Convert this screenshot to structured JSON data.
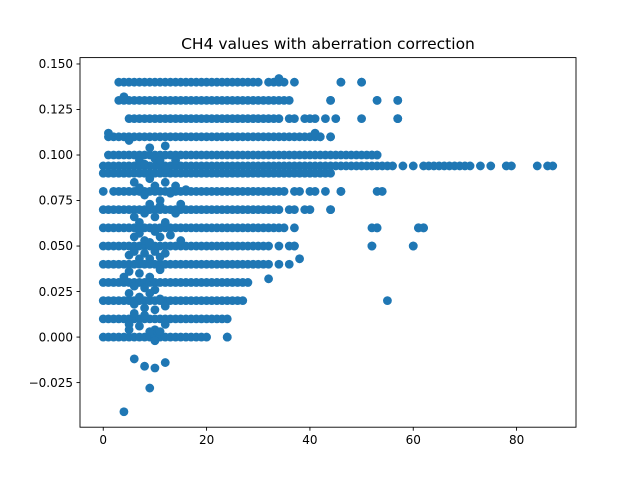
{
  "chart_data": {
    "type": "scatter",
    "title": "CH4 values with aberration correction",
    "xlabel": "",
    "ylabel": "",
    "xlim": [
      -4.5,
      91.5
    ],
    "ylim": [
      -0.0495,
      0.1535
    ],
    "x_ticks": [
      0,
      20,
      40,
      60,
      80
    ],
    "x_tick_labels": [
      "0",
      "20",
      "40",
      "60",
      "80"
    ],
    "y_ticks": [
      -0.025,
      0.0,
      0.025,
      0.05,
      0.075,
      0.1,
      0.125,
      0.15
    ],
    "y_tick_labels": [
      "−0.025",
      "0.000",
      "0.025",
      "0.050",
      "0.075",
      "0.100",
      "0.125",
      "0.150"
    ],
    "grid": false,
    "legend": "none",
    "marker_color": "#1f77b4",
    "series": [
      {
        "bands": [
          {
            "y": 0.14,
            "x": [
              3,
              4,
              5,
              6,
              7,
              8,
              9,
              10,
              11,
              12,
              13,
              14,
              15,
              16,
              17,
              18,
              19,
              20,
              21,
              22,
              23,
              24,
              25,
              26,
              27,
              28,
              29,
              30,
              32,
              33,
              34,
              35,
              37,
              46,
              50
            ]
          },
          {
            "y": 0.13,
            "x": [
              3,
              4,
              5,
              6,
              7,
              8,
              9,
              10,
              11,
              12,
              13,
              14,
              15,
              16,
              17,
              18,
              19,
              20,
              21,
              22,
              23,
              24,
              25,
              26,
              27,
              28,
              29,
              30,
              31,
              32,
              33,
              34,
              35,
              36,
              44,
              53,
              57
            ]
          },
          {
            "y": 0.12,
            "x": [
              5,
              6,
              7,
              8,
              9,
              10,
              11,
              12,
              13,
              14,
              15,
              16,
              17,
              18,
              19,
              20,
              21,
              22,
              23,
              24,
              25,
              26,
              27,
              28,
              29,
              30,
              31,
              32,
              33,
              34,
              36,
              37,
              39,
              40,
              41,
              43,
              45,
              50,
              57
            ]
          },
          {
            "y": 0.11,
            "x": [
              1,
              2,
              3,
              4,
              5,
              6,
              7,
              8,
              9,
              10,
              11,
              12,
              13,
              14,
              15,
              16,
              17,
              18,
              19,
              20,
              21,
              22,
              23,
              24,
              25,
              26,
              27,
              28,
              29,
              30,
              31,
              32,
              33,
              34,
              35,
              36,
              37,
              38,
              39,
              40,
              41,
              42,
              44
            ]
          },
          {
            "y": 0.1,
            "x": [
              1,
              2,
              3,
              4,
              5,
              6,
              7,
              8,
              9,
              10,
              11,
              12,
              13,
              14,
              15,
              16,
              17,
              18,
              19,
              20,
              21,
              22,
              23,
              24,
              25,
              26,
              27,
              28,
              29,
              30,
              31,
              32,
              33,
              34,
              35,
              36,
              37,
              38,
              39,
              40,
              41,
              42,
              43,
              44,
              45,
              46,
              47,
              48,
              49,
              50,
              51,
              52,
              53
            ]
          },
          {
            "y": 0.094,
            "x": [
              0,
              1,
              2,
              3,
              4,
              5,
              6,
              7,
              8,
              9,
              10,
              11,
              12,
              13,
              14,
              15,
              16,
              17,
              18,
              19,
              20,
              21,
              22,
              23,
              24,
              25,
              26,
              27,
              28,
              29,
              30,
              31,
              32,
              33,
              34,
              35,
              36,
              37,
              38,
              39,
              40,
              41,
              42,
              43,
              44,
              45,
              46,
              47,
              48,
              49,
              50,
              51,
              52,
              53,
              54,
              55,
              56,
              58,
              60,
              62,
              63,
              64,
              65,
              66,
              67,
              68,
              69,
              70,
              71,
              73,
              75,
              78,
              79,
              84,
              86,
              87
            ]
          },
          {
            "y": 0.09,
            "x": [
              0,
              1,
              2,
              3,
              4,
              5,
              6,
              7,
              8,
              9,
              10,
              11,
              12,
              13,
              14,
              15,
              16,
              17,
              18,
              19,
              20,
              21,
              22,
              23,
              24,
              25,
              26,
              27,
              28,
              29,
              30,
              31,
              32,
              33,
              34,
              35,
              36,
              37,
              38,
              39,
              40,
              41,
              42,
              43,
              44
            ]
          },
          {
            "y": 0.08,
            "x": [
              0,
              2,
              3,
              4,
              5,
              6,
              7,
              8,
              9,
              10,
              11,
              12,
              13,
              14,
              15,
              16,
              17,
              18,
              19,
              20,
              21,
              22,
              23,
              24,
              25,
              26,
              27,
              28,
              29,
              30,
              31,
              32,
              33,
              34,
              35,
              37,
              38,
              40,
              41,
              43,
              46,
              53
            ]
          },
          {
            "y": 0.07,
            "x": [
              0,
              1,
              2,
              3,
              4,
              5,
              6,
              7,
              8,
              9,
              10,
              11,
              12,
              13,
              14,
              15,
              16,
              17,
              18,
              19,
              20,
              21,
              22,
              23,
              24,
              25,
              26,
              27,
              28,
              29,
              30,
              31,
              32,
              33,
              34,
              36,
              37,
              39,
              40,
              44
            ]
          },
          {
            "y": 0.06,
            "x": [
              0,
              1,
              2,
              3,
              4,
              5,
              6,
              7,
              8,
              9,
              10,
              11,
              12,
              13,
              14,
              15,
              16,
              17,
              18,
              19,
              20,
              21,
              22,
              23,
              24,
              25,
              26,
              27,
              28,
              29,
              30,
              31,
              32,
              33,
              34,
              35,
              37,
              52,
              53,
              61,
              62
            ]
          },
          {
            "y": 0.05,
            "x": [
              0,
              1,
              2,
              3,
              4,
              5,
              6,
              7,
              8,
              9,
              10,
              11,
              12,
              13,
              14,
              15,
              16,
              17,
              18,
              19,
              20,
              21,
              22,
              23,
              24,
              25,
              26,
              27,
              28,
              29,
              30,
              31,
              32,
              34,
              36,
              37,
              52,
              60
            ]
          },
          {
            "y": 0.04,
            "x": [
              0,
              1,
              2,
              3,
              4,
              5,
              6,
              7,
              8,
              9,
              10,
              11,
              12,
              13,
              14,
              15,
              16,
              17,
              18,
              19,
              20,
              21,
              22,
              23,
              24,
              25,
              26,
              27,
              28,
              29,
              30,
              31,
              32,
              34
            ]
          },
          {
            "y": 0.03,
            "x": [
              0,
              1,
              2,
              3,
              4,
              5,
              6,
              7,
              8,
              9,
              10,
              11,
              12,
              13,
              14,
              15,
              16,
              17,
              18,
              19,
              20,
              21,
              22,
              23,
              24,
              25,
              26,
              27,
              28
            ]
          },
          {
            "y": 0.02,
            "x": [
              0,
              1,
              2,
              3,
              4,
              5,
              6,
              7,
              8,
              9,
              10,
              11,
              12,
              13,
              14,
              15,
              16,
              17,
              18,
              19,
              20,
              21,
              22,
              23,
              24,
              25,
              26,
              27
            ]
          },
          {
            "y": 0.01,
            "x": [
              0,
              1,
              2,
              3,
              4,
              5,
              6,
              7,
              8,
              9,
              10,
              11,
              12,
              13,
              14,
              15,
              16,
              17,
              18,
              19,
              20,
              21,
              22,
              23,
              24
            ]
          },
          {
            "y": 0.0,
            "x": [
              0,
              1,
              2,
              3,
              4,
              5,
              6,
              7,
              8,
              9,
              10,
              11,
              12,
              13,
              14,
              15,
              16,
              17,
              18,
              19,
              20,
              24
            ]
          }
        ],
        "points": [
          [
            34,
            0.142
          ],
          [
            4,
            0.132
          ],
          [
            1,
            0.112
          ],
          [
            5,
            0.108
          ],
          [
            9,
            0.104
          ],
          [
            12,
            0.105
          ],
          [
            46,
            0.14
          ],
          [
            50,
            0.14
          ],
          [
            44,
            0.13
          ],
          [
            53,
            0.13
          ],
          [
            57,
            0.13
          ],
          [
            57,
            0.12
          ],
          [
            41,
            0.112
          ],
          [
            42,
            0.11
          ],
          [
            44,
            0.11
          ],
          [
            52,
            0.1
          ],
          [
            53,
            0.1
          ],
          [
            54,
            0.08
          ],
          [
            46,
            0.08
          ],
          [
            44,
            0.07
          ],
          [
            53,
            0.06
          ],
          [
            52,
            0.05
          ],
          [
            60,
            0.05
          ],
          [
            61,
            0.06
          ],
          [
            62,
            0.06
          ],
          [
            37,
            0.05
          ],
          [
            36,
            0.04
          ],
          [
            38,
            0.043
          ],
          [
            32,
            0.032
          ],
          [
            55,
            0.02
          ],
          [
            24,
            0.0
          ],
          [
            10,
            -0.002
          ],
          [
            6,
            0.085
          ],
          [
            7,
            0.082
          ],
          [
            8,
            0.078
          ],
          [
            9,
            0.087
          ],
          [
            10,
            0.083
          ],
          [
            11,
            0.075
          ],
          [
            12,
            0.085
          ],
          [
            13,
            0.079
          ],
          [
            14,
            0.083
          ],
          [
            16,
            0.081
          ],
          [
            6,
            0.066
          ],
          [
            7,
            0.063
          ],
          [
            8,
            0.068
          ],
          [
            9,
            0.073
          ],
          [
            10,
            0.066
          ],
          [
            11,
            0.072
          ],
          [
            12,
            0.063
          ],
          [
            14,
            0.068
          ],
          [
            15,
            0.073
          ],
          [
            6,
            0.055
          ],
          [
            7,
            0.057
          ],
          [
            8,
            0.053
          ],
          [
            9,
            0.052
          ],
          [
            10,
            0.058
          ],
          [
            11,
            0.055
          ],
          [
            13,
            0.056
          ],
          [
            15,
            0.053
          ],
          [
            5,
            0.045
          ],
          [
            6,
            0.047
          ],
          [
            7,
            0.043
          ],
          [
            8,
            0.046
          ],
          [
            9,
            0.043
          ],
          [
            10,
            0.047
          ],
          [
            11,
            0.044
          ],
          [
            12,
            0.046
          ],
          [
            4,
            0.033
          ],
          [
            5,
            0.036
          ],
          [
            6,
            0.028
          ],
          [
            7,
            0.035
          ],
          [
            8,
            0.027
          ],
          [
            9,
            0.033
          ],
          [
            10,
            0.026
          ],
          [
            11,
            0.037
          ],
          [
            5,
            0.024
          ],
          [
            6,
            0.018
          ],
          [
            7,
            0.022
          ],
          [
            8,
            0.016
          ],
          [
            9,
            0.024
          ],
          [
            10,
            0.015
          ],
          [
            11,
            0.021
          ],
          [
            12,
            0.017
          ],
          [
            5,
            0.007
          ],
          [
            6,
            0.013
          ],
          [
            7,
            0.006
          ],
          [
            8,
            0.012
          ],
          [
            10,
            0.004
          ],
          [
            11,
            0.003
          ],
          [
            12,
            0.007
          ],
          [
            5,
            0.004
          ],
          [
            9,
            0.003
          ],
          [
            7,
            0.097
          ],
          [
            8,
            0.095
          ],
          [
            10,
            0.098
          ],
          [
            11,
            0.097
          ],
          [
            12,
            0.092
          ],
          [
            14,
            0.097
          ],
          [
            6,
            -0.012
          ],
          [
            8,
            -0.016
          ],
          [
            10,
            -0.017
          ],
          [
            12,
            -0.014
          ],
          [
            9,
            -0.028
          ],
          [
            4,
            -0.041
          ]
        ]
      }
    ]
  }
}
